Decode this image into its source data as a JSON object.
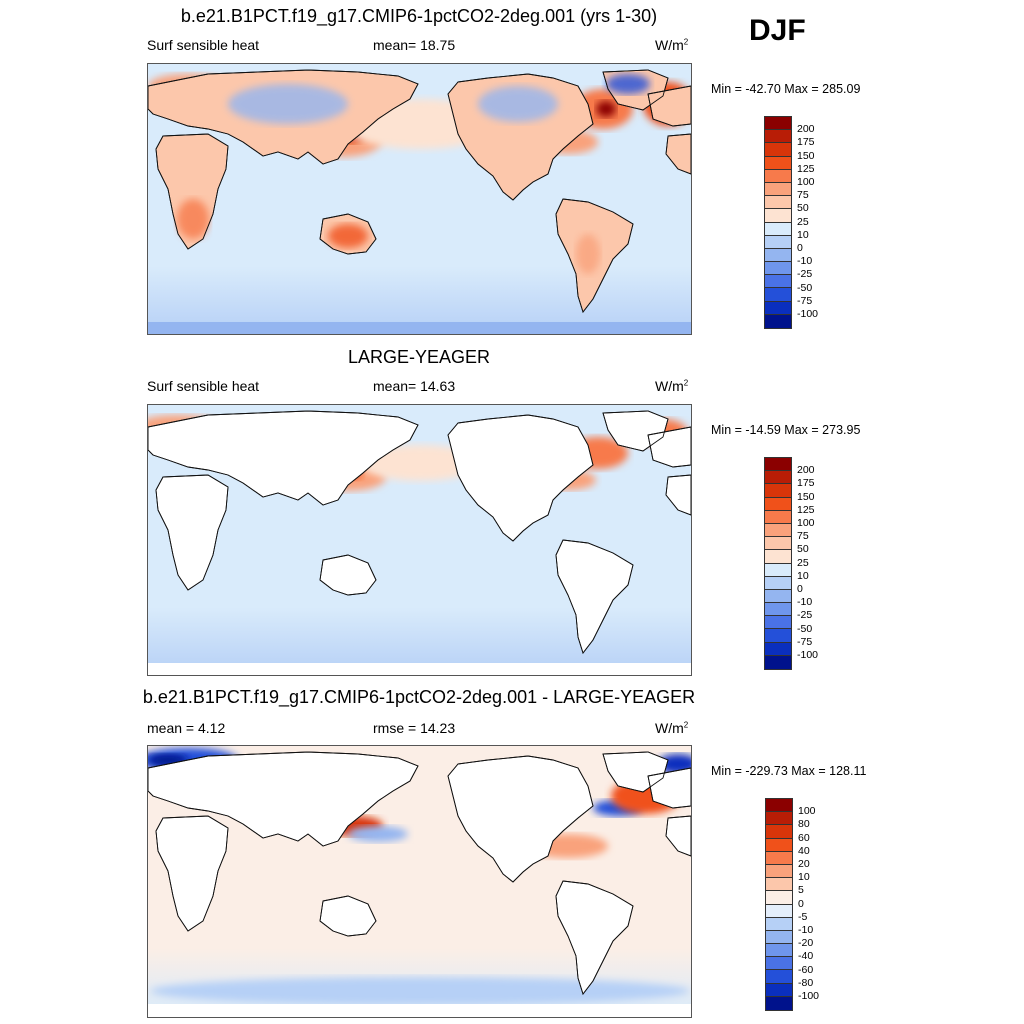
{
  "season": "DJF",
  "panels": [
    {
      "title": "b.e21.B1PCT.f19_g17.CMIP6-1pctCO2-2deg.001 (yrs 1-30)",
      "left_label": "Surf sensible heat",
      "center_label": "mean=  18.75",
      "units": "W/m",
      "units_sup": "2",
      "minmax": "Min = -42.70 Max = 285.09",
      "colorbar": {
        "labels": [
          "200",
          "175",
          "150",
          "125",
          "100",
          "75",
          "50",
          "25",
          "10",
          "0",
          "-10",
          "-25",
          "-50",
          "-75",
          "-100"
        ],
        "colors": [
          "#8b0000",
          "#b81d06",
          "#d8350a",
          "#f0511a",
          "#f77a4b",
          "#f9a27c",
          "#fcc7ab",
          "#fde3d2",
          "#d9ebfb",
          "#b6d0f6",
          "#94b5f0",
          "#6f96ec",
          "#4a72e6",
          "#2450d9",
          "#0a2fbe",
          "#00128c"
        ]
      },
      "field": "model"
    },
    {
      "title": "LARGE-YEAGER",
      "left_label": "Surf sensible heat",
      "center_label": "mean=  14.63",
      "units": "W/m",
      "units_sup": "2",
      "minmax": "Min = -14.59 Max = 273.95",
      "colorbar": {
        "labels": [
          "200",
          "175",
          "150",
          "125",
          "100",
          "75",
          "50",
          "25",
          "10",
          "0",
          "-10",
          "-25",
          "-50",
          "-75",
          "-100"
        ],
        "colors": [
          "#8b0000",
          "#b81d06",
          "#d8350a",
          "#f0511a",
          "#f77a4b",
          "#f9a27c",
          "#fcc7ab",
          "#fde3d2",
          "#d9ebfb",
          "#b6d0f6",
          "#94b5f0",
          "#6f96ec",
          "#4a72e6",
          "#2450d9",
          "#0a2fbe",
          "#00128c"
        ]
      },
      "field": "obs"
    },
    {
      "title": "b.e21.B1PCT.f19_g17.CMIP6-1pctCO2-2deg.001 - LARGE-YEAGER",
      "left_label": "mean =   4.12",
      "center_label": "rmse =  14.23",
      "units": "W/m",
      "units_sup": "2",
      "minmax": "Min = -229.73 Max = 128.11",
      "colorbar": {
        "labels": [
          "100",
          "80",
          "60",
          "40",
          "20",
          "10",
          "5",
          "0",
          "-5",
          "-10",
          "-20",
          "-40",
          "-60",
          "-80",
          "-100"
        ],
        "colors": [
          "#8b0000",
          "#b81d06",
          "#d8350a",
          "#f0511a",
          "#f77a4b",
          "#f9a27c",
          "#fcc7ab",
          "#fbeee6",
          "#e4eefb",
          "#b6d0f6",
          "#94b5f0",
          "#6f96ec",
          "#4a72e6",
          "#2450d9",
          "#0a2fbe",
          "#00128c"
        ]
      },
      "field": "diff"
    }
  ]
}
